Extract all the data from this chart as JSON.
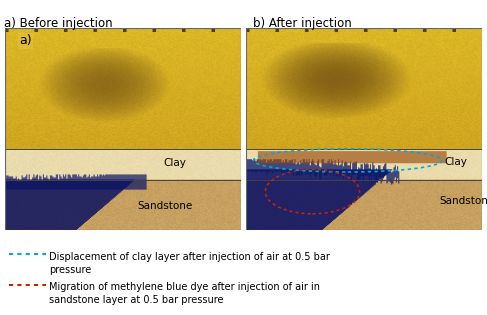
{
  "title_a": "a) Before injection",
  "title_b": "b) After injection",
  "label_clay_left": "Clay",
  "label_sandstone_left": "Sandstone",
  "label_clay_right": "Clay",
  "label_sandstone_right": "Sandstone",
  "label_a": "a)",
  "legend_cyan_text": "Displacement of clay layer after injection of air at 0.5 bar\npressure",
  "legend_red_text": "Migration of methylene blue dye after injection of air in\nsandstone layer at 0.5 bar pressure",
  "cyan_color": "#00AACC",
  "red_color": "#CC2200",
  "font_size_title": 8.5,
  "font_size_label": 7.5,
  "font_size_legend": 7.0,
  "top_band_color": "#C8980A",
  "clay_band_color": "#E8D89A",
  "sand_band_color": "#C8A060",
  "dark_blob_color": "#6B4010",
  "blue_ink_color": "#0A1A6A",
  "clay_stripe_color": "#8B5020"
}
